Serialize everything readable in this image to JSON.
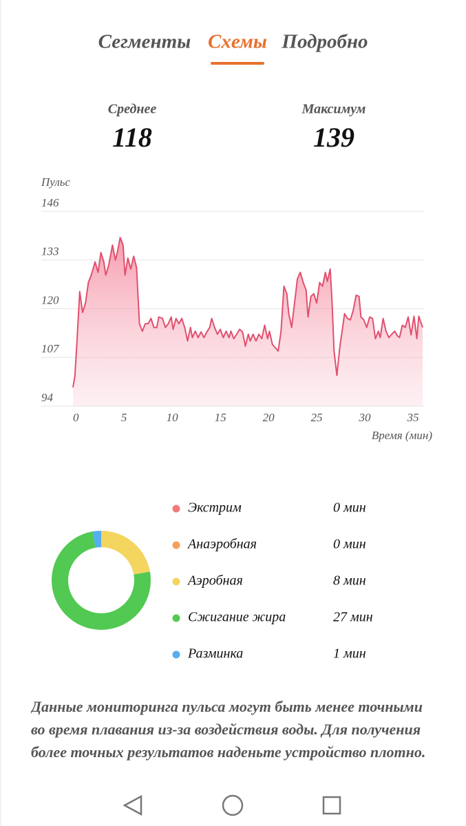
{
  "tabs": [
    "Сегменты",
    "Схемы",
    "Подробно"
  ],
  "stats": [
    {
      "label": "Среднее",
      "value": 118
    },
    {
      "label": "Максимум",
      "value": 139
    }
  ],
  "chart_data": [
    {
      "type": "area",
      "y_label": "Пульс",
      "x_label": "Время (мин)",
      "x": [
        -0.3,
        -0.1,
        0.1,
        0.4,
        0.7,
        1.0,
        1.3,
        1.6,
        2.0,
        2.3,
        2.6,
        2.9,
        3.1,
        3.4,
        3.8,
        4.1,
        4.3,
        4.6,
        4.9,
        5.1,
        5.4,
        5.7,
        6.0,
        6.3,
        6.6,
        6.9,
        7.2,
        7.5,
        7.8,
        8.1,
        8.4,
        8.6,
        9.0,
        9.3,
        9.6,
        9.9,
        10.1,
        10.4,
        10.7,
        11.0,
        11.3,
        11.6,
        11.9,
        12.1,
        12.4,
        12.7,
        13.0,
        13.3,
        13.6,
        13.9,
        14.1,
        14.4,
        14.7,
        15.0,
        15.3,
        15.6,
        15.9,
        16.1,
        16.4,
        16.7,
        17.0,
        17.3,
        17.6,
        17.9,
        18.1,
        18.4,
        18.7,
        19.0,
        19.3,
        19.6,
        19.9,
        20.1,
        20.4,
        20.7,
        21.0,
        21.3,
        21.6,
        21.9,
        22.1,
        22.4,
        22.7,
        23.0,
        23.3,
        23.6,
        23.9,
        24.1,
        24.4,
        24.7,
        25.0,
        25.3,
        25.6,
        25.9,
        26.1,
        26.4,
        26.6,
        26.8,
        27.1,
        27.4,
        27.6,
        27.9,
        28.2,
        28.5,
        28.8,
        29.1,
        29.4,
        29.6,
        29.9,
        30.2,
        30.5,
        30.8,
        31.1,
        31.4,
        31.6,
        31.9,
        32.2,
        32.5,
        32.8,
        33.1,
        33.4,
        33.6,
        33.9,
        34.2,
        34.5,
        34.8,
        35.1,
        35.4,
        35.6,
        36.0
      ],
      "series": [
        {
          "color": "#e0506e",
          "values": [
            99,
            102,
            110.5,
            124.6,
            119,
            121.5,
            127,
            129,
            132.5,
            129.7,
            135,
            132.5,
            129,
            131.5,
            137,
            133,
            135,
            139,
            137,
            129,
            133.5,
            130.6,
            134,
            131,
            116,
            114,
            116,
            116,
            117.4,
            115,
            115,
            117.8,
            117.4,
            115,
            116,
            117.8,
            114.5,
            117.4,
            116,
            117.4,
            115,
            111.4,
            115,
            112.3,
            114,
            112.3,
            113.8,
            112.3,
            113.8,
            115,
            117.4,
            115,
            113.2,
            114.5,
            112.3,
            114,
            112.3,
            114,
            112,
            113.2,
            114.5,
            113.8,
            110,
            113.2,
            111.4,
            113.2,
            111.4,
            113.2,
            112,
            115.6,
            112,
            114,
            110.5,
            109.6,
            108.7,
            114,
            126,
            124,
            118.7,
            115,
            121.5,
            128,
            129.7,
            127,
            125,
            117.8,
            123.3,
            124,
            121.5,
            127,
            126,
            129.7,
            127.3,
            130.6,
            121.5,
            108.7,
            102.2,
            109.6,
            113.2,
            118.7,
            117.4,
            117,
            119.6,
            123.6,
            123.3,
            117.8,
            117,
            115,
            117.8,
            117.4,
            112,
            114,
            112.3,
            117.4,
            114,
            112.3,
            113.2,
            114,
            112.7,
            112.3,
            115.6,
            115,
            117.8,
            113,
            118,
            112,
            118,
            115
          ]
        }
      ],
      "xlim": [
        -0.3,
        36
      ],
      "xticks": [
        0,
        5,
        10,
        15,
        20,
        25,
        30,
        35
      ],
      "ylim": [
        94,
        146
      ],
      "yticks": [
        94,
        107,
        120,
        133,
        146
      ],
      "grid": true
    },
    {
      "type": "pie",
      "categories": [
        "Экстрим",
        "Анаэробная",
        "Аэробная",
        "Сжигание жира",
        "Разминка"
      ],
      "values": [
        0,
        0,
        8,
        27,
        1
      ],
      "value_labels": [
        "0 мин",
        "0 мин",
        "8 мин",
        "27 мин",
        "1 мин"
      ],
      "colors": [
        "#f47a7a",
        "#f5a05a",
        "#f3d55f",
        "#52c952",
        "#55aef0"
      ]
    }
  ],
  "note": "Данные мониторинга пульса могут быть менее точными во время плавания из-за воздействия воды. Для получения более точных результатов наденьте устройство плотно."
}
